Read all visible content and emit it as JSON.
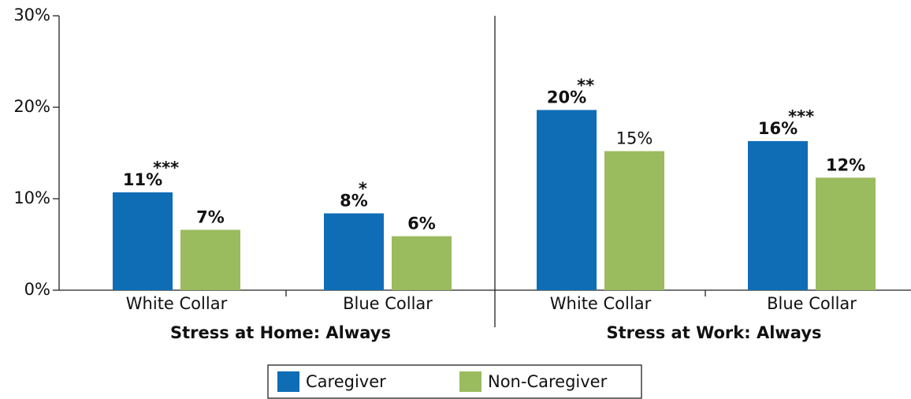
{
  "chart_data": {
    "type": "bar",
    "groups": [
      "Stress at Home: Always",
      "Stress at Work: Always"
    ],
    "categories": [
      "White Collar",
      "Blue Collar",
      "White Collar",
      "Blue Collar"
    ],
    "series": [
      {
        "name": "Caregiver",
        "color": "#0f6db6",
        "values": [
          10.7,
          8.4,
          19.7,
          16.3
        ],
        "value_labels": [
          "11%",
          "8%",
          "20%",
          "16%"
        ],
        "significance": [
          "***",
          "*",
          "**",
          "***"
        ],
        "bold": [
          true,
          true,
          true,
          true
        ]
      },
      {
        "name": "Non-Caregiver",
        "color": "#9bbb5f",
        "values": [
          6.6,
          5.9,
          15.2,
          12.3
        ],
        "value_labels": [
          "7%",
          "6%",
          "15%",
          "12%"
        ],
        "bold": [
          true,
          true,
          false,
          true
        ]
      }
    ],
    "ylim": [
      0,
      30
    ],
    "yticks": [
      {
        "value": 0,
        "label": "0%"
      },
      {
        "value": 10,
        "label": "10%"
      },
      {
        "value": 20,
        "label": "20%"
      },
      {
        "value": 30,
        "label": "30%"
      }
    ],
    "legend": "bottom"
  }
}
